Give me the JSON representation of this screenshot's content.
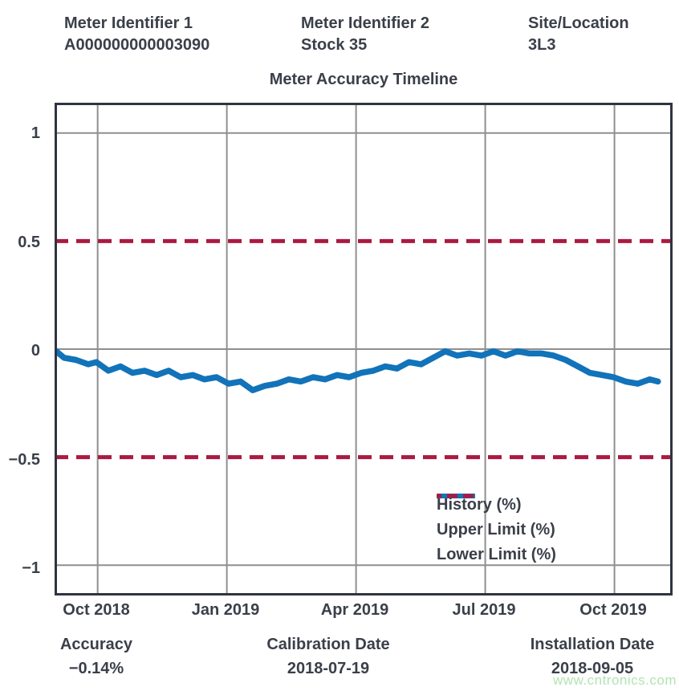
{
  "header": {
    "col1_label": "Meter Identifier 1",
    "col1_value": "A000000000003090",
    "col2_label": "Meter Identifier 2",
    "col2_value": "Stock 35",
    "col3_label": "Site/Location",
    "col3_value": "3L3"
  },
  "title": "Meter Accuracy Timeline",
  "footer": {
    "accuracy_label": "Accuracy",
    "accuracy_value": "−0.14%",
    "calibration_label": "Calibration Date",
    "calibration_value": "2018-07-19",
    "installation_label": "Installation Date",
    "installation_value": "2018-09-05"
  },
  "watermark": "www.cntronics.com",
  "colors": {
    "history": "#1173b9",
    "limit": "#ab1a40",
    "grid": "#8f8f8f",
    "border": "#2f3440",
    "text": "#3a3f49",
    "watermark": "#b2e4b2"
  },
  "chart_data": {
    "type": "line",
    "title": "Meter Accuracy Timeline",
    "x_unit": "months since 2018-09-01",
    "x_range": [
      0,
      14.35
    ],
    "y_range": [
      -1.14,
      1.14
    ],
    "x_ticks": [
      {
        "t": 1,
        "label": "Oct 2018"
      },
      {
        "t": 4,
        "label": "Jan 2019"
      },
      {
        "t": 7,
        "label": "Apr 2019"
      },
      {
        "t": 10,
        "label": "Jul 2019"
      },
      {
        "t": 13,
        "label": "Oct 2019"
      }
    ],
    "y_ticks": [
      {
        "v": 1,
        "label": "1"
      },
      {
        "v": 0.5,
        "label": "0.5"
      },
      {
        "v": 0,
        "label": "0"
      },
      {
        "v": -0.5,
        "label": "−0.5"
      },
      {
        "v": -1,
        "label": "−1"
      }
    ],
    "h_gridlines": [
      1,
      0,
      -1
    ],
    "upper_limit": 0.5,
    "lower_limit": -0.5,
    "grid": true,
    "legend_position": "lower-right",
    "legend": [
      {
        "label": "History (%)",
        "style": "solid"
      },
      {
        "label": "Upper Limit (%)",
        "style": "dashed"
      },
      {
        "label": "Lower Limit (%)",
        "style": "dashed"
      }
    ],
    "series": [
      {
        "name": "History (%)",
        "points": [
          [
            0.04,
            -0.01
          ],
          [
            0.22,
            -0.04
          ],
          [
            0.5,
            -0.05
          ],
          [
            0.78,
            -0.07
          ],
          [
            0.97,
            -0.06
          ],
          [
            1.25,
            -0.1
          ],
          [
            1.53,
            -0.08
          ],
          [
            1.81,
            -0.11
          ],
          [
            2.09,
            -0.1
          ],
          [
            2.37,
            -0.12
          ],
          [
            2.65,
            -0.1
          ],
          [
            2.93,
            -0.13
          ],
          [
            3.21,
            -0.12
          ],
          [
            3.48,
            -0.14
          ],
          [
            3.76,
            -0.13
          ],
          [
            4.04,
            -0.16
          ],
          [
            4.32,
            -0.15
          ],
          [
            4.6,
            -0.19
          ],
          [
            4.88,
            -0.17
          ],
          [
            5.16,
            -0.16
          ],
          [
            5.44,
            -0.14
          ],
          [
            5.72,
            -0.15
          ],
          [
            6.0,
            -0.13
          ],
          [
            6.28,
            -0.14
          ],
          [
            6.56,
            -0.12
          ],
          [
            6.84,
            -0.13
          ],
          [
            7.12,
            -0.11
          ],
          [
            7.4,
            -0.1
          ],
          [
            7.68,
            -0.08
          ],
          [
            7.95,
            -0.09
          ],
          [
            8.23,
            -0.06
          ],
          [
            8.51,
            -0.07
          ],
          [
            8.79,
            -0.04
          ],
          [
            9.07,
            -0.01
          ],
          [
            9.35,
            -0.03
          ],
          [
            9.63,
            -0.02
          ],
          [
            9.91,
            -0.03
          ],
          [
            10.19,
            -0.01
          ],
          [
            10.47,
            -0.03
          ],
          [
            10.75,
            -0.01
          ],
          [
            11.03,
            -0.02
          ],
          [
            11.31,
            -0.02
          ],
          [
            11.59,
            -0.03
          ],
          [
            11.87,
            -0.05
          ],
          [
            12.15,
            -0.08
          ],
          [
            12.43,
            -0.11
          ],
          [
            12.71,
            -0.12
          ],
          [
            12.98,
            -0.13
          ],
          [
            13.26,
            -0.15
          ],
          [
            13.54,
            -0.16
          ],
          [
            13.82,
            -0.14
          ],
          [
            14.01,
            -0.15
          ]
        ]
      }
    ]
  }
}
